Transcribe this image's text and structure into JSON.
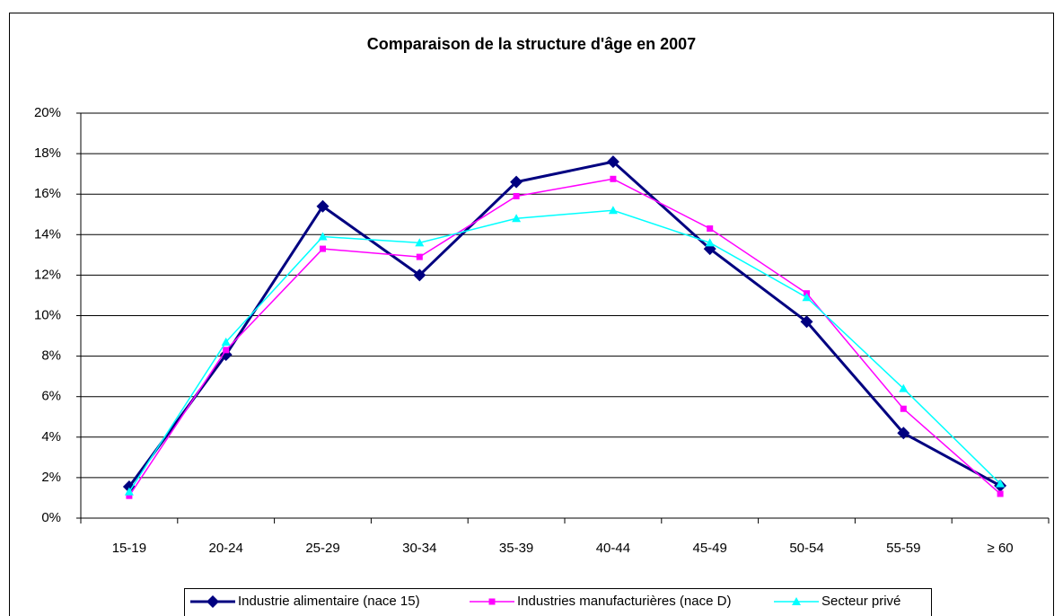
{
  "chart_data": {
    "type": "line",
    "title": "Comparaison de la structure d'âge en 2007",
    "categories": [
      "15-19",
      "20-24",
      "25-29",
      "30-34",
      "35-39",
      "40-44",
      "45-49",
      "50-54",
      "55-59",
      "≥ 60"
    ],
    "series": [
      {
        "name": "Industrie alimentaire (nace 15)",
        "color": "#000080",
        "marker": "diamond",
        "values": [
          1.55,
          8.07,
          15.4,
          12.0,
          16.6,
          17.6,
          13.3,
          9.7,
          4.2,
          1.6
        ]
      },
      {
        "name": "Industries manufacturières (nace D)",
        "color": "#ff00ff",
        "marker": "square",
        "values": [
          1.1,
          8.3,
          13.3,
          12.9,
          15.9,
          16.75,
          14.3,
          11.1,
          5.4,
          1.2
        ]
      },
      {
        "name": "Secteur privé",
        "color": "#00ffff",
        "marker": "triangle",
        "values": [
          1.3,
          8.7,
          13.9,
          13.6,
          14.8,
          15.2,
          13.6,
          10.9,
          6.4,
          1.7
        ]
      }
    ],
    "ylim": [
      0,
      20
    ],
    "yticks": [
      {
        "value": 0,
        "label": "0%"
      },
      {
        "value": 2,
        "label": "2%"
      },
      {
        "value": 4,
        "label": "4%"
      },
      {
        "value": 6,
        "label": "6%"
      },
      {
        "value": 8,
        "label": "8%"
      },
      {
        "value": 10,
        "label": "10%"
      },
      {
        "value": 12,
        "label": "12%"
      },
      {
        "value": 14,
        "label": "14%"
      },
      {
        "value": 16,
        "label": "16%"
      },
      {
        "value": 18,
        "label": "18%"
      },
      {
        "value": 20,
        "label": "20%"
      }
    ],
    "grid": true,
    "legend": "bottom"
  }
}
